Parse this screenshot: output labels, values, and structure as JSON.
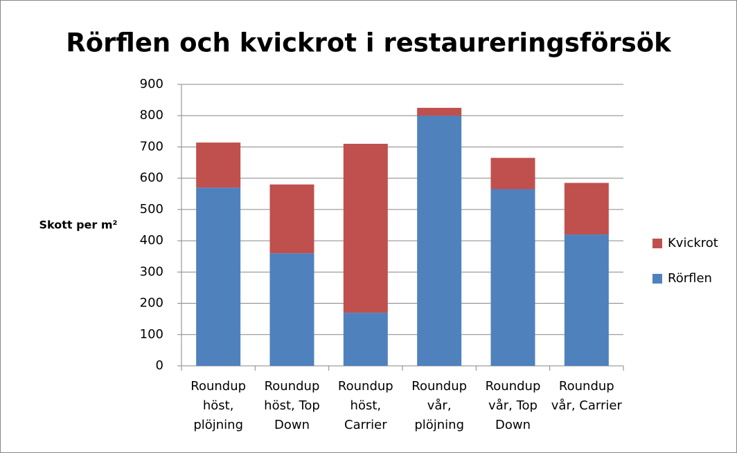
{
  "chart_data": {
    "type": "bar",
    "stacked": true,
    "title": "Rörflen och kvickrot i restaureringsförsök",
    "y_label": "Skott per m²",
    "categories": [
      "Roundup höst, plöjning",
      "Roundup höst, Top Down",
      "Roundup höst, Carrier",
      "Roundup vår, plöjning",
      "Roundup vår, Top Down",
      "Roundup vår, Carrier"
    ],
    "series": [
      {
        "name": "Rörflen",
        "color": "#4f81bd",
        "values": [
          570,
          360,
          170,
          800,
          565,
          420
        ]
      },
      {
        "name": "Kvickrot",
        "color": "#c0504d",
        "values": [
          144,
          220,
          540,
          25,
          100,
          165
        ]
      }
    ],
    "ylim": [
      0,
      900
    ],
    "yticks": [
      0,
      100,
      200,
      300,
      400,
      500,
      600,
      700,
      800,
      900
    ],
    "grid": true,
    "legend": "right"
  }
}
